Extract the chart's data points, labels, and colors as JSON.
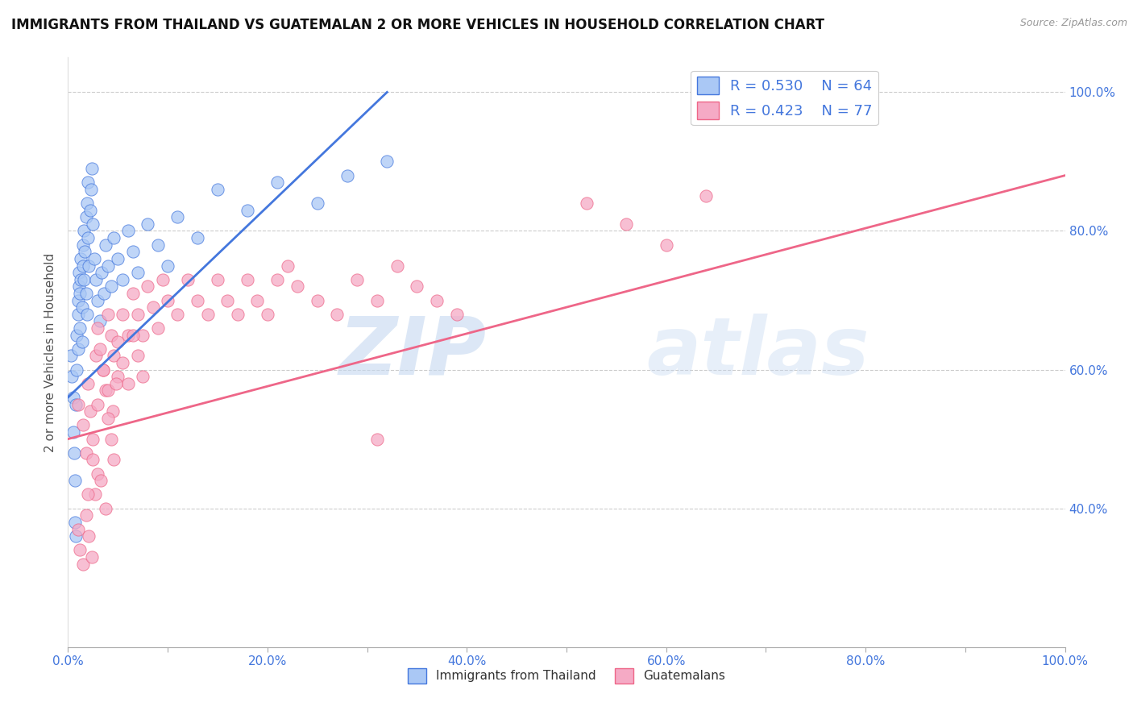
{
  "title": "IMMIGRANTS FROM THAILAND VS GUATEMALAN 2 OR MORE VEHICLES IN HOUSEHOLD CORRELATION CHART",
  "source": "Source: ZipAtlas.com",
  "ylabel": "2 or more Vehicles in Household",
  "xlim": [
    0.0,
    1.0
  ],
  "ylim": [
    0.2,
    1.05
  ],
  "xtick_vals": [
    0.0,
    0.1,
    0.2,
    0.3,
    0.4,
    0.5,
    0.6,
    0.7,
    0.8,
    0.9,
    1.0
  ],
  "xtick_labels": [
    "0.0%",
    "",
    "20.0%",
    "",
    "40.0%",
    "",
    "60.0%",
    "",
    "80.0%",
    "",
    "100.0%"
  ],
  "ytick_vals_left": [],
  "ytick_vals_right": [
    0.4,
    0.6,
    0.8,
    1.0
  ],
  "ytick_labels_right": [
    "40.0%",
    "60.0%",
    "80.0%",
    "100.0%"
  ],
  "grid_ytick_vals": [
    0.4,
    0.6,
    0.8,
    1.0
  ],
  "thailand_R": 0.53,
  "thailand_N": 64,
  "guatemalan_R": 0.423,
  "guatemalan_N": 77,
  "thailand_color": "#aac8f5",
  "guatemalan_color": "#f5aac5",
  "thailand_line_color": "#4477dd",
  "guatemalan_line_color": "#ee6688",
  "legend_label_thailand": "Immigrants from Thailand",
  "legend_label_guatemalan": "Guatemalans",
  "watermark_zip": "ZIP",
  "watermark_atlas": "atlas",
  "background_color": "#ffffff",
  "grid_color": "#cccccc",
  "title_color": "#111111",
  "axis_label_color": "#4477dd",
  "right_label_color": "#4477dd",
  "thailand_scatter_x": [
    0.003,
    0.004,
    0.005,
    0.005,
    0.006,
    0.007,
    0.007,
    0.008,
    0.008,
    0.009,
    0.009,
    0.01,
    0.01,
    0.01,
    0.011,
    0.011,
    0.012,
    0.012,
    0.013,
    0.013,
    0.014,
    0.014,
    0.015,
    0.015,
    0.016,
    0.016,
    0.017,
    0.018,
    0.018,
    0.019,
    0.019,
    0.02,
    0.02,
    0.021,
    0.022,
    0.023,
    0.024,
    0.025,
    0.026,
    0.028,
    0.03,
    0.032,
    0.034,
    0.036,
    0.038,
    0.04,
    0.043,
    0.046,
    0.05,
    0.055,
    0.06,
    0.065,
    0.07,
    0.08,
    0.09,
    0.1,
    0.11,
    0.13,
    0.15,
    0.18,
    0.21,
    0.25,
    0.28,
    0.32
  ],
  "thailand_scatter_y": [
    0.62,
    0.59,
    0.56,
    0.51,
    0.48,
    0.44,
    0.38,
    0.36,
    0.55,
    0.6,
    0.65,
    0.68,
    0.7,
    0.63,
    0.72,
    0.74,
    0.66,
    0.71,
    0.73,
    0.76,
    0.69,
    0.64,
    0.75,
    0.78,
    0.8,
    0.73,
    0.77,
    0.82,
    0.71,
    0.68,
    0.84,
    0.87,
    0.79,
    0.75,
    0.83,
    0.86,
    0.89,
    0.81,
    0.76,
    0.73,
    0.7,
    0.67,
    0.74,
    0.71,
    0.78,
    0.75,
    0.72,
    0.79,
    0.76,
    0.73,
    0.8,
    0.77,
    0.74,
    0.81,
    0.78,
    0.75,
    0.82,
    0.79,
    0.86,
    0.83,
    0.87,
    0.84,
    0.88,
    0.9
  ],
  "guatemalan_scatter_x": [
    0.01,
    0.015,
    0.018,
    0.02,
    0.022,
    0.025,
    0.028,
    0.03,
    0.032,
    0.035,
    0.038,
    0.04,
    0.043,
    0.046,
    0.05,
    0.055,
    0.06,
    0.065,
    0.07,
    0.075,
    0.08,
    0.085,
    0.09,
    0.095,
    0.1,
    0.11,
    0.12,
    0.13,
    0.14,
    0.15,
    0.16,
    0.17,
    0.18,
    0.19,
    0.2,
    0.21,
    0.22,
    0.23,
    0.25,
    0.27,
    0.29,
    0.31,
    0.33,
    0.35,
    0.37,
    0.39,
    0.03,
    0.035,
    0.04,
    0.045,
    0.05,
    0.055,
    0.06,
    0.065,
    0.07,
    0.075,
    0.52,
    0.56,
    0.6,
    0.64,
    0.01,
    0.012,
    0.015,
    0.018,
    0.021,
    0.024,
    0.027,
    0.03,
    0.31,
    0.02,
    0.025,
    0.033,
    0.038,
    0.04,
    0.043,
    0.046,
    0.048
  ],
  "guatemalan_scatter_y": [
    0.55,
    0.52,
    0.48,
    0.58,
    0.54,
    0.5,
    0.62,
    0.66,
    0.63,
    0.6,
    0.57,
    0.68,
    0.65,
    0.62,
    0.59,
    0.68,
    0.65,
    0.71,
    0.68,
    0.65,
    0.72,
    0.69,
    0.66,
    0.73,
    0.7,
    0.68,
    0.73,
    0.7,
    0.68,
    0.73,
    0.7,
    0.68,
    0.73,
    0.7,
    0.68,
    0.73,
    0.75,
    0.72,
    0.7,
    0.68,
    0.73,
    0.7,
    0.75,
    0.72,
    0.7,
    0.68,
    0.55,
    0.6,
    0.57,
    0.54,
    0.64,
    0.61,
    0.58,
    0.65,
    0.62,
    0.59,
    0.84,
    0.81,
    0.78,
    0.85,
    0.37,
    0.34,
    0.32,
    0.39,
    0.36,
    0.33,
    0.42,
    0.45,
    0.5,
    0.42,
    0.47,
    0.44,
    0.4,
    0.53,
    0.5,
    0.47,
    0.58
  ],
  "thailand_trend_x": [
    0.0,
    0.32
  ],
  "thailand_trend_y": [
    0.56,
    1.0
  ],
  "guatemalan_trend_x": [
    0.0,
    1.0
  ],
  "guatemalan_trend_y": [
    0.5,
    0.88
  ]
}
